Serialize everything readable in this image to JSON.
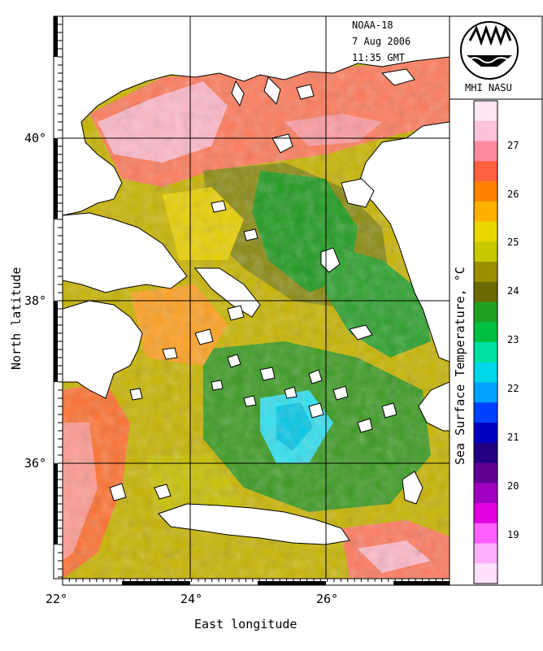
{
  "satellite": {
    "name": "NOAA-18",
    "date": "7 Aug 2006",
    "time": "11:35 GMT"
  },
  "logo": {
    "caption": "MHI NASU"
  },
  "axes": {
    "x_title": "East longitude",
    "y_title": "North latitude",
    "x_ticks": [
      "22°",
      "24°",
      "26°"
    ],
    "y_ticks": [
      "40°",
      "38°",
      "36°"
    ]
  },
  "colorbar": {
    "title": "Sea Surface Temperature, °C",
    "ticks": [
      "27",
      "26",
      "25",
      "24",
      "23",
      "22",
      "21",
      "20",
      "19"
    ],
    "colors": [
      "#ffe6f4",
      "#ffc0dc",
      "#ff8a9e",
      "#ff6040",
      "#ff8000",
      "#ffb000",
      "#e8d800",
      "#c8c800",
      "#9a9000",
      "#6a6a00",
      "#20a020",
      "#00c040",
      "#00e0a0",
      "#00d8e8",
      "#00a0ff",
      "#0040ff",
      "#0000c0",
      "#200080",
      "#600090",
      "#a000c0",
      "#e000e0",
      "#ff60ff",
      "#ffb0ff",
      "#ffe0ff"
    ]
  },
  "sst_colors": {
    "warm_pink": "#ffb8c8",
    "orange": "#ff7030",
    "yellow": "#e8d000",
    "olive": "#8a8a10",
    "green": "#1e9a1e",
    "cyan": "#30e0f0",
    "land": "#ffffff"
  }
}
